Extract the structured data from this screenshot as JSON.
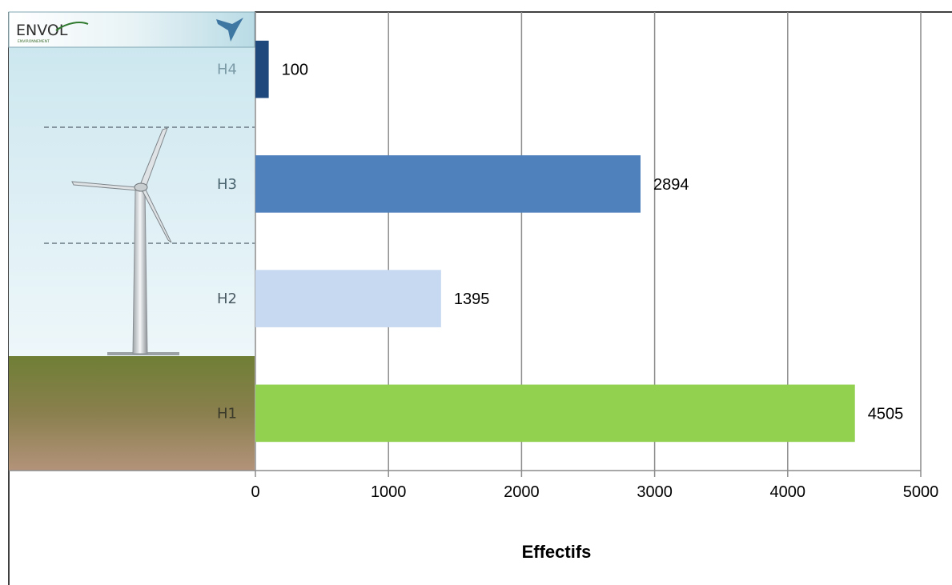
{
  "logo": {
    "name": "ENVOL",
    "tagline": "ENVIRONNEMENT"
  },
  "chart_data": {
    "type": "bar",
    "orientation": "horizontal",
    "categories": [
      "H4",
      "H3",
      "H2",
      "H1"
    ],
    "values": [
      100,
      2894,
      1395,
      4505
    ],
    "colors": [
      "#1f497d",
      "#4f81bd",
      "#c6d9f1",
      "#92d050"
    ],
    "xlabel": "Effectifs",
    "ylabel": "",
    "xlim": [
      0,
      5000
    ],
    "xticks": [
      0,
      1000,
      2000,
      3000,
      4000,
      5000
    ],
    "grid": "vertical",
    "legend": "none"
  }
}
